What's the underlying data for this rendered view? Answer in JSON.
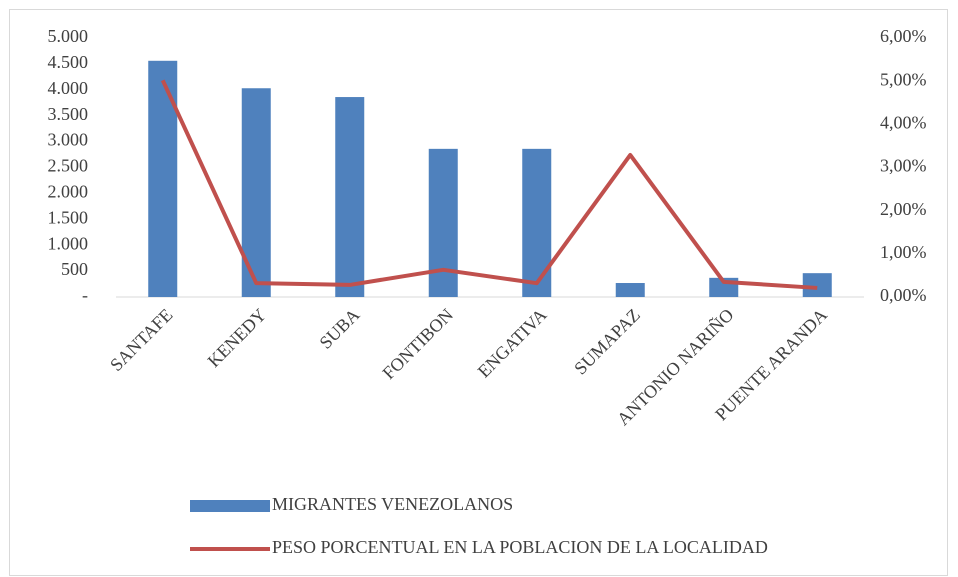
{
  "chart_data": {
    "type": "bar_line",
    "categories": [
      "SANTAFE",
      "KENEDY",
      "SUBA",
      "FONTIBON",
      "ENGATIVA",
      "SUMAPAZ",
      "ANTONIO NARIÑO",
      "PUENTE ARANDA"
    ],
    "series": [
      {
        "name": "MIGRANTES VENEZOLANOS",
        "type": "bar",
        "color": "#4f81bd",
        "values": [
          4560,
          4030,
          3860,
          2860,
          2860,
          270,
          370,
          460
        ]
      },
      {
        "name": "PESO PORCENTUAL EN LA  POBLACION DE LA LOCALIDAD",
        "type": "line",
        "axis": "y2",
        "color": "#c0504d",
        "values": [
          5.02,
          0.32,
          0.28,
          0.63,
          0.32,
          3.29,
          0.35,
          0.21
        ]
      }
    ],
    "ylim": [
      0,
      5000
    ],
    "yticks": [
      {
        "value": 0,
        "label": "-"
      },
      500,
      {
        "value": 1000,
        "label": "1.000"
      },
      {
        "value": 1500,
        "label": "1.500"
      },
      {
        "value": 2000,
        "label": "2.000"
      },
      {
        "value": 2500,
        "label": "2.500"
      },
      {
        "value": 3000,
        "label": "3.000"
      },
      {
        "value": 3500,
        "label": "3.500"
      },
      {
        "value": 4000,
        "label": "4.000"
      },
      {
        "value": 4500,
        "label": "4.500"
      },
      {
        "value": 5000,
        "label": "5.000"
      }
    ],
    "y2lim": [
      0,
      6
    ],
    "y2ticks": [
      {
        "value": 0,
        "label": "0,00%"
      },
      {
        "value": 1,
        "label": "1,00%"
      },
      {
        "value": 2,
        "label": "2,00%"
      },
      {
        "value": 3,
        "label": "3,00%"
      },
      {
        "value": 4,
        "label": "4,00%"
      },
      {
        "value": 5,
        "label": "5,00%"
      },
      {
        "value": 6,
        "label": "6,00%"
      }
    ],
    "grid": false,
    "legend": "bottom"
  }
}
